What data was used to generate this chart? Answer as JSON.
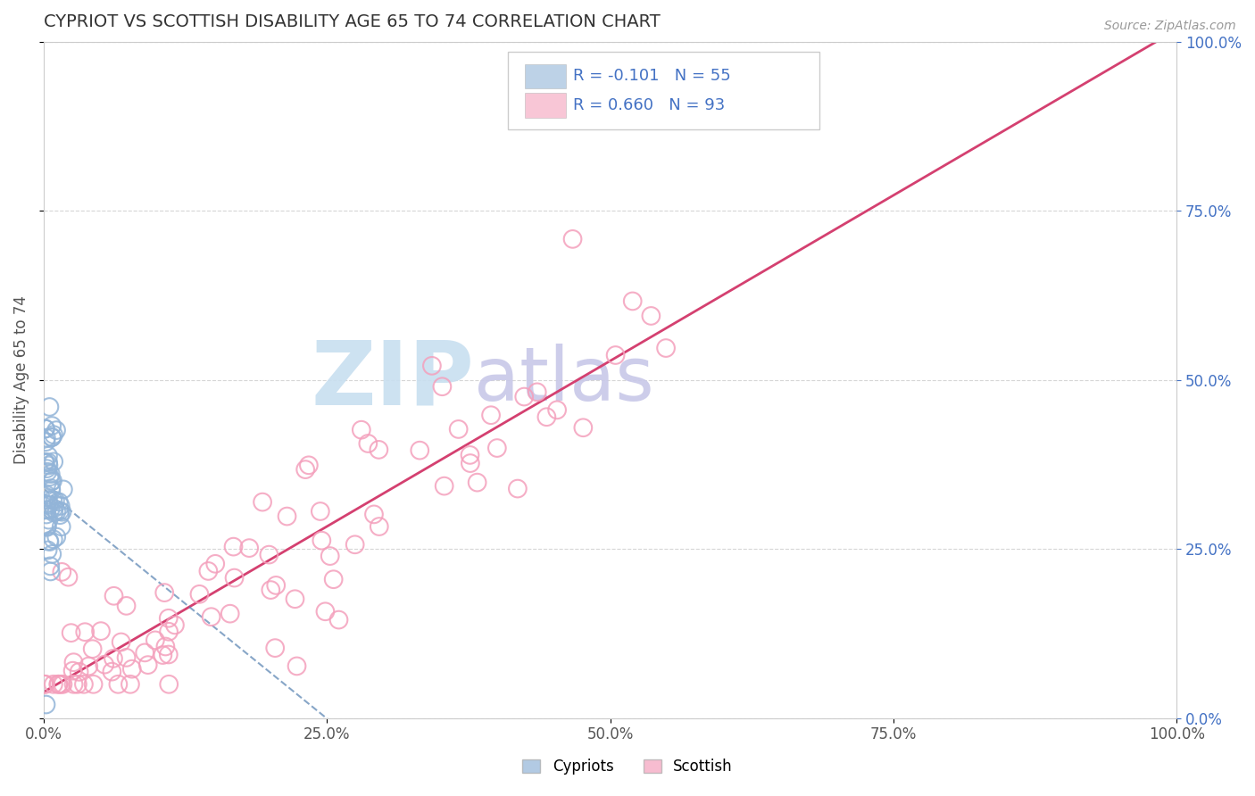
{
  "title": "CYPRIOT VS SCOTTISH DISABILITY AGE 65 TO 74 CORRELATION CHART",
  "source": "Source: ZipAtlas.com",
  "ylabel": "Disability Age 65 to 74",
  "cypriot_label": "Cypriots",
  "scottish_label": "Scottish",
  "cypriot_R": -0.101,
  "cypriot_N": 55,
  "scottish_R": 0.66,
  "scottish_N": 93,
  "cypriot_color": "#92b4d8",
  "scottish_color": "#f4a0bc",
  "cypriot_line_color": "#5580b0",
  "scottish_line_color": "#d44070",
  "background_color": "#ffffff",
  "grid_color": "#cccccc",
  "xlim": [
    0,
    1
  ],
  "ylim": [
    0,
    1
  ],
  "xtick_labels": [
    "0.0%",
    "25.0%",
    "50.0%",
    "75.0%",
    "100.0%"
  ],
  "xtick_vals": [
    0,
    0.25,
    0.5,
    0.75,
    1.0
  ],
  "ytick_labels": [
    "0.0%",
    "25.0%",
    "50.0%",
    "75.0%",
    "100.0%"
  ],
  "ytick_vals": [
    0,
    0.25,
    0.5,
    0.75,
    1.0
  ],
  "title_color": "#333333",
  "axis_color": "#555555",
  "right_axis_color": "#4472c4",
  "legend_R_color": "#4472c4",
  "watermark_zip_color": "#c8dff0",
  "watermark_atlas_color": "#c8c8e8"
}
